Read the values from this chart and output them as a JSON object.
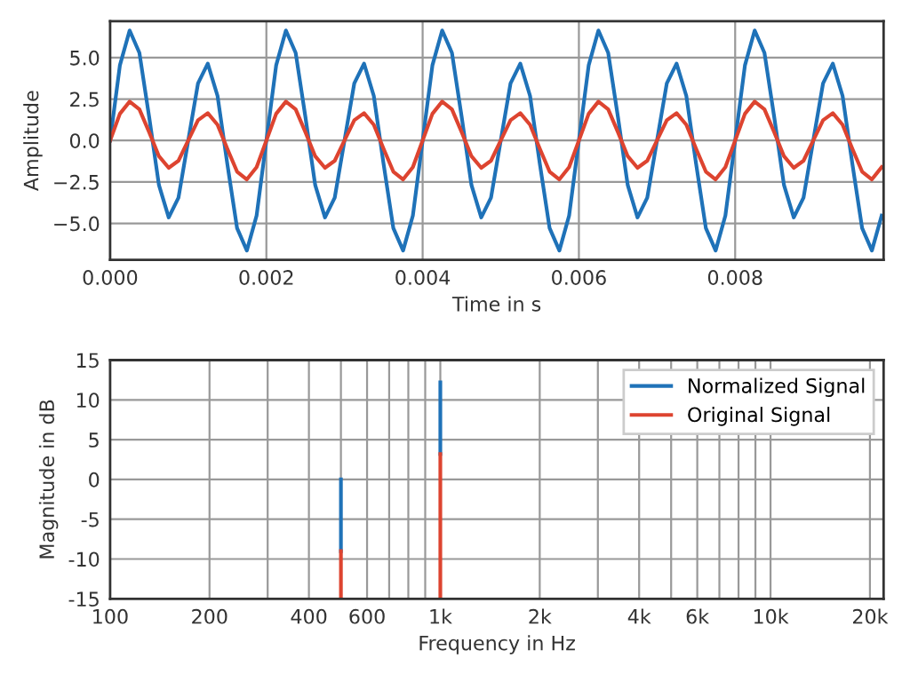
{
  "chart_data": [
    {
      "type": "line",
      "xlabel": "Time in s",
      "ylabel": "Amplitude",
      "grid": true,
      "legend": false,
      "x": [
        0,
        0.000125,
        0.00025,
        0.000375,
        0.0005,
        0.000625,
        0.00075,
        0.000875,
        0.001,
        0.001125,
        0.00125,
        0.001375,
        0.0015,
        0.001625,
        0.00175,
        0.001875,
        0.002,
        0.002125,
        0.00225,
        0.002375,
        0.0025,
        0.002625,
        0.00275,
        0.002875,
        0.003,
        0.003125,
        0.00325,
        0.003375,
        0.0035,
        0.003625,
        0.00375,
        0.003875,
        0.004,
        0.004125,
        0.00425,
        0.004375,
        0.0045,
        0.004625,
        0.00475,
        0.004875,
        0.005,
        0.005125,
        0.00525,
        0.005375,
        0.0055,
        0.005625,
        0.00575,
        0.005875,
        0.006,
        0.006125,
        0.00625,
        0.006375,
        0.0065,
        0.006625,
        0.00675,
        0.006875,
        0.007,
        0.007125,
        0.00725,
        0.007375,
        0.0075,
        0.007625,
        0.00775,
        0.007875,
        0.008,
        0.008125,
        0.00825,
        0.008375,
        0.0085,
        0.008625,
        0.00875,
        0.008875,
        0.009,
        0.009125,
        0.00925,
        0.009375,
        0.0095,
        0.009625,
        0.00975,
        0.009875
      ],
      "xlim": [
        0,
        0.0099
      ],
      "xticks": [
        {
          "value": 0,
          "label": "0.000"
        },
        {
          "value": 0.002,
          "label": "0.002"
        },
        {
          "value": 0.004,
          "label": "0.004"
        },
        {
          "value": 0.006,
          "label": "0.006"
        },
        {
          "value": 0.008,
          "label": "0.008"
        }
      ],
      "ylim": [
        -7.2,
        7.2
      ],
      "yticks": [
        {
          "value": -5,
          "label": "−5.0"
        },
        {
          "value": -2.5,
          "label": "−2.5"
        },
        {
          "value": 0,
          "label": "0.0"
        },
        {
          "value": 2.5,
          "label": "2.5"
        },
        {
          "value": 5,
          "label": "5.0"
        }
      ],
      "series": [
        {
          "color": "#1f72b8",
          "values": [
            0,
            4.53,
            6.64,
            5.29,
            1.41,
            -2.69,
            -4.64,
            -3.45,
            0,
            3.45,
            4.64,
            2.69,
            -1.41,
            -5.29,
            -6.64,
            -4.53,
            0,
            4.53,
            6.64,
            5.29,
            1.41,
            -2.69,
            -4.64,
            -3.45,
            0,
            3.45,
            4.64,
            2.69,
            -1.41,
            -5.29,
            -6.64,
            -4.53,
            0,
            4.53,
            6.64,
            5.29,
            1.41,
            -2.69,
            -4.64,
            -3.45,
            0,
            3.45,
            4.64,
            2.69,
            -1.41,
            -5.29,
            -6.64,
            -4.53,
            0,
            4.53,
            6.64,
            5.29,
            1.41,
            -2.69,
            -4.64,
            -3.45,
            0,
            3.45,
            4.64,
            2.69,
            -1.41,
            -5.29,
            -6.64,
            -4.53,
            0,
            4.53,
            6.64,
            5.29,
            1.41,
            -2.69,
            -4.64,
            -3.45,
            0,
            3.45,
            4.64,
            2.69,
            -1.41,
            -5.29,
            -6.64,
            -4.53
          ]
        },
        {
          "color": "#dd4430",
          "values": [
            0,
            1.61,
            2.35,
            1.88,
            0.5,
            -0.95,
            -1.65,
            -1.22,
            0,
            1.22,
            1.65,
            0.95,
            -0.5,
            -1.88,
            -2.35,
            -1.61,
            0,
            1.61,
            2.35,
            1.88,
            0.5,
            -0.95,
            -1.65,
            -1.22,
            0,
            1.22,
            1.65,
            0.95,
            -0.5,
            -1.88,
            -2.35,
            -1.61,
            0,
            1.61,
            2.35,
            1.88,
            0.5,
            -0.95,
            -1.65,
            -1.22,
            0,
            1.22,
            1.65,
            0.95,
            -0.5,
            -1.88,
            -2.35,
            -1.61,
            0,
            1.61,
            2.35,
            1.88,
            0.5,
            -0.95,
            -1.65,
            -1.22,
            0,
            1.22,
            1.65,
            0.95,
            -0.5,
            -1.88,
            -2.35,
            -1.61,
            0,
            1.61,
            2.35,
            1.88,
            0.5,
            -0.95,
            -1.65,
            -1.22,
            0,
            1.22,
            1.65,
            0.95,
            -0.5,
            -1.88,
            -2.35,
            -1.61
          ]
        }
      ]
    },
    {
      "type": "line",
      "xlabel": "Frequency in Hz",
      "ylabel": "Magnitude in dB",
      "grid": true,
      "log": "x",
      "legend": "top right",
      "x": [
        500,
        500,
        750,
        1000,
        1000
      ],
      "xlim": [
        100,
        22000
      ],
      "xticks": [
        100,
        200,
        {
          "value": 300,
          "label": null
        },
        400,
        {
          "value": 500,
          "label": null
        },
        600,
        {
          "value": 700,
          "label": null
        },
        {
          "value": 800,
          "label": null
        },
        {
          "value": 900,
          "label": null
        },
        {
          "value": 1000,
          "label": "1k"
        },
        {
          "value": 2000,
          "label": "2k"
        },
        {
          "value": 3000,
          "label": null
        },
        {
          "value": 4000,
          "label": "4k"
        },
        {
          "value": 5000,
          "label": null
        },
        {
          "value": 6000,
          "label": "6k"
        },
        {
          "value": 7000,
          "label": null
        },
        {
          "value": 8000,
          "label": null
        },
        {
          "value": 9000,
          "label": null
        },
        {
          "value": 10000,
          "label": "10k"
        },
        {
          "value": 20000,
          "label": "20k"
        }
      ],
      "ylim": [
        -15,
        15
      ],
      "yticks": [
        -15,
        -10,
        -5,
        0,
        5,
        10,
        15
      ],
      "series": [
        {
          "name": "Normalized Signal",
          "color": "#1f72b8",
          "values": [
            -9,
            0,
            null,
            3.2,
            12.2
          ]
        },
        {
          "name": "Original Signal",
          "color": "#dd4430",
          "values": [
            -15,
            -9,
            null,
            -15,
            3.2
          ]
        }
      ]
    }
  ]
}
